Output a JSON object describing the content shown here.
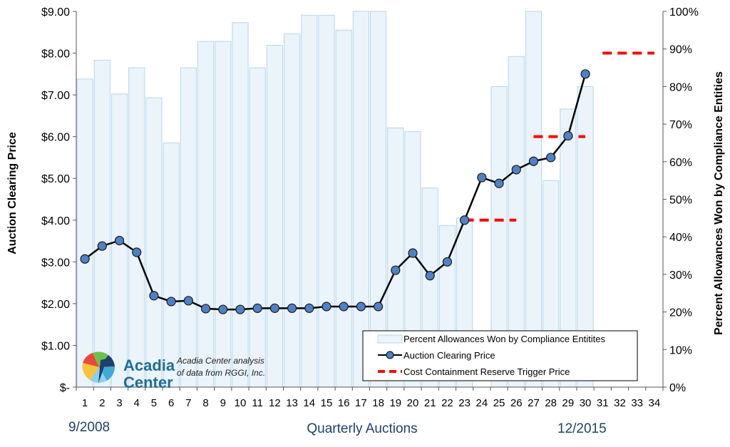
{
  "chart_data": {
    "type": "bar+line",
    "categories": [
      "1",
      "2",
      "3",
      "4",
      "5",
      "6",
      "7",
      "8",
      "9",
      "10",
      "11",
      "12",
      "13",
      "14",
      "15",
      "16",
      "17",
      "18",
      "19",
      "20",
      "21",
      "22",
      "23",
      "24",
      "25",
      "26",
      "27",
      "28",
      "29",
      "30",
      "31",
      "32",
      "33",
      "34"
    ],
    "series": [
      {
        "name": "Percent Allowances Won by Compliance Entitites",
        "type": "bar",
        "axis": "right",
        "values": [
          82,
          87,
          78,
          85,
          77,
          65,
          85,
          92,
          92,
          97,
          85,
          91,
          94,
          99,
          99,
          95,
          100,
          100,
          69,
          68,
          53,
          43,
          45,
          null,
          80,
          88,
          100,
          55,
          74,
          80,
          null,
          null,
          null,
          null
        ]
      },
      {
        "name": "Auction Clearing Price",
        "type": "line",
        "axis": "left",
        "values": [
          3.07,
          3.38,
          3.51,
          3.23,
          2.19,
          2.05,
          2.07,
          1.88,
          1.86,
          1.86,
          1.89,
          1.89,
          1.89,
          1.89,
          1.93,
          1.93,
          1.93,
          1.93,
          2.8,
          3.21,
          2.67,
          3.0,
          4.0,
          5.02,
          4.88,
          5.21,
          5.41,
          5.5,
          6.02,
          7.5,
          null,
          null,
          null,
          null
        ]
      },
      {
        "name": "Cost Containment Reserve Trigger Price",
        "type": "dashed-step",
        "axis": "left",
        "segments": [
          {
            "from": 23,
            "to": 26,
            "value": 4.0
          },
          {
            "from": 27,
            "to": 30,
            "value": 6.0
          },
          {
            "from": 31,
            "to": 34,
            "value": 8.0
          }
        ]
      }
    ],
    "ylabel_left": "Auction Clearing Price",
    "ylabel_right": "Percent Allowances Won by Compliance Entities",
    "xlabel": "Quarterly Auctions",
    "ylim_left": [
      0,
      9
    ],
    "ylim_right": [
      0,
      100
    ],
    "yticks_left": [
      "$-",
      "$1.00",
      "$2.00",
      "$3.00",
      "$4.00",
      "$5.00",
      "$6.00",
      "$7.00",
      "$8.00",
      "$9.00"
    ],
    "yticks_right": [
      "0%",
      "10%",
      "20%",
      "30%",
      "40%",
      "50%",
      "60%",
      "70%",
      "80%",
      "90%",
      "100%"
    ],
    "x_start_label": "9/2008",
    "x_end_label": "12/2015",
    "legend_position": "bottom-right",
    "colors": {
      "bar_fill": "#eaf4fa",
      "bar_stroke": "#b9d6ea",
      "line": "#000000",
      "marker": "#4f81c7",
      "trigger": "#ff0000"
    }
  },
  "logo": {
    "line1": "Acadia",
    "line2": "Center"
  },
  "credit": {
    "line1": "Acadia Center analysis",
    "line2": "of data from RGGI, Inc."
  }
}
